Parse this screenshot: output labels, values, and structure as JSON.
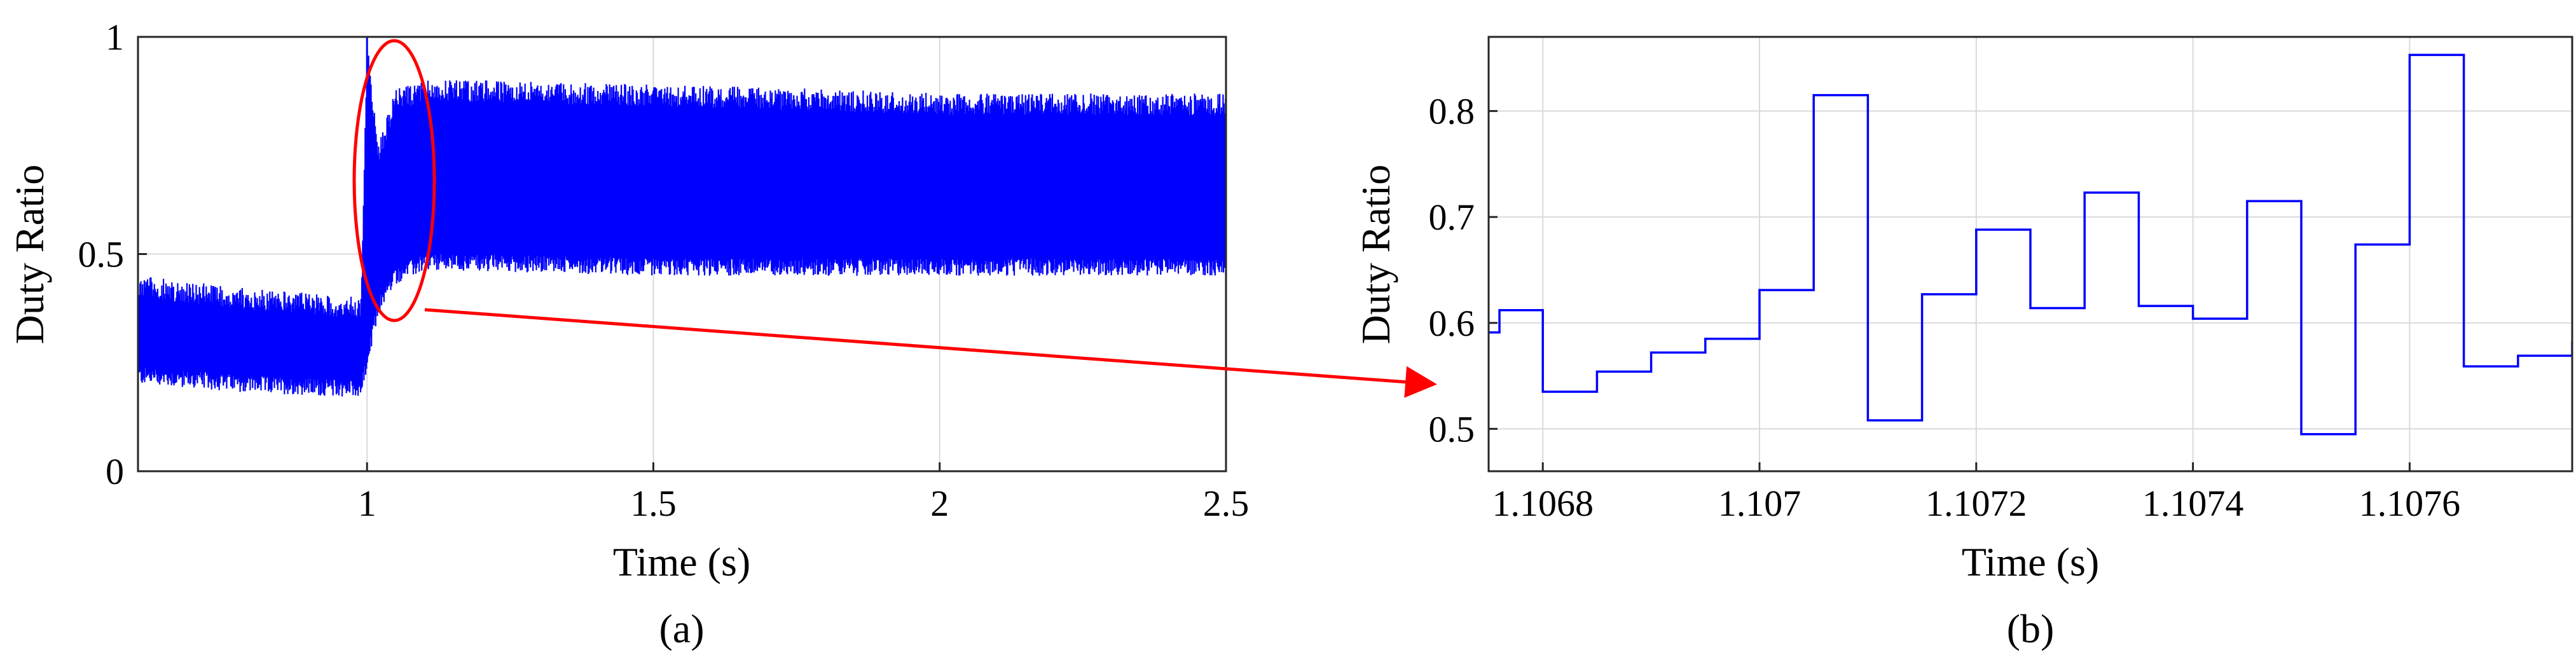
{
  "chart_data": [
    {
      "type": "line",
      "panel": "(a)",
      "xlabel": "Time (s)",
      "ylabel": "Duty Ratio",
      "xlim": [
        0.6,
        2.5
      ],
      "ylim": [
        0,
        1
      ],
      "xticks": [
        1,
        1.5,
        2,
        2.5
      ],
      "xtick_labels": [
        "1",
        "1.5",
        "2",
        "2.5"
      ],
      "yticks": [
        0,
        0.5,
        1
      ],
      "ytick_labels": [
        "0",
        "0.5",
        "1"
      ],
      "grid": true,
      "series": [
        {
          "color": "#0000ff",
          "description_points": {
            "x": [
              0.6,
              0.8,
              0.99,
              1.0,
              1.02,
              1.05,
              1.1,
              1.2,
              1.5,
              1.8,
              2.0,
              2.5
            ],
            "lower": [
              0.22,
              0.2,
              0.19,
              0.25,
              0.38,
              0.45,
              0.48,
              0.48,
              0.47,
              0.47,
              0.47,
              0.47
            ],
            "upper": [
              0.45,
              0.42,
              0.4,
              1.0,
              0.75,
              0.88,
              0.9,
              0.9,
              0.89,
              0.88,
              0.87,
              0.87
            ]
          }
        }
      ],
      "annotation": "zoom ellipse around t≈1.06 with arrow to panel (b)"
    },
    {
      "type": "line",
      "panel": "(b)",
      "xlabel": "Time (s)",
      "ylabel": "Duty Ratio",
      "xlim": [
        1.10675,
        1.10775
      ],
      "ylim": [
        0.46,
        0.87
      ],
      "xticks": [
        1.1068,
        1.107,
        1.1072,
        1.1074,
        1.1076
      ],
      "xtick_labels": [
        "1.1068",
        "1.107",
        "1.1072",
        "1.1074",
        "1.1076"
      ],
      "yticks": [
        0.5,
        0.6,
        0.7,
        0.8
      ],
      "ytick_labels": [
        "0.5",
        "0.6",
        "0.7",
        "0.8"
      ],
      "grid": true,
      "series": [
        {
          "color": "#0000ff",
          "step": true,
          "x": [
            1.10675,
            1.10676,
            1.1068,
            1.10685,
            1.1069,
            1.10695,
            1.107,
            1.10705,
            1.1071,
            1.10715,
            1.1072,
            1.10725,
            1.1073,
            1.10735,
            1.1074,
            1.10745,
            1.1075,
            1.10755,
            1.1076,
            1.10765,
            1.1077,
            1.10775
          ],
          "y": [
            0.591,
            0.612,
            0.535,
            0.554,
            0.572,
            0.585,
            0.631,
            0.815,
            0.508,
            0.627,
            0.688,
            0.614,
            0.723,
            0.616,
            0.604,
            0.715,
            0.495,
            0.674,
            0.853,
            0.559,
            0.569,
            0.583
          ]
        }
      ]
    }
  ],
  "captions": [
    "(a)",
    "(b)"
  ]
}
